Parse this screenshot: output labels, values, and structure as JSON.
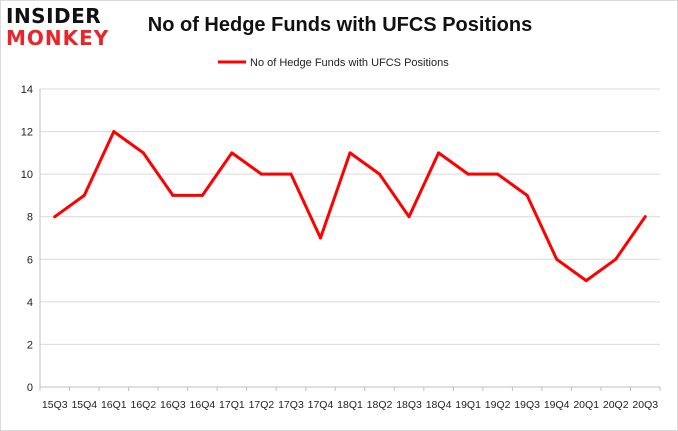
{
  "logo": {
    "line1": "INSIDER",
    "line2": "MONKEY"
  },
  "colors": {
    "line": "#ff0000",
    "grid": "#d9d9d9",
    "axis": "#bfbfbf",
    "logo_accent": "#e8262a"
  },
  "chart_data": {
    "type": "line",
    "title": "No of Hedge Funds with UFCS Positions",
    "xlabel": "",
    "ylabel": "",
    "ylim": [
      0,
      14
    ],
    "yticks": [
      0,
      2,
      4,
      6,
      8,
      10,
      12,
      14
    ],
    "grid": true,
    "legend": "top-center",
    "categories": [
      "15Q3",
      "15Q4",
      "16Q1",
      "16Q2",
      "16Q3",
      "16Q4",
      "17Q1",
      "17Q2",
      "17Q3",
      "17Q4",
      "18Q1",
      "18Q2",
      "18Q3",
      "18Q4",
      "19Q1",
      "19Q2",
      "19Q3",
      "19Q4",
      "20Q1",
      "20Q2",
      "20Q3"
    ],
    "series": [
      {
        "name": "No of Hedge Funds with UFCS Positions",
        "values": [
          8,
          9,
          12,
          11,
          9,
          9,
          11,
          10,
          10,
          7,
          11,
          10,
          8,
          11,
          10,
          10,
          9,
          6,
          5,
          6,
          8
        ]
      }
    ]
  }
}
